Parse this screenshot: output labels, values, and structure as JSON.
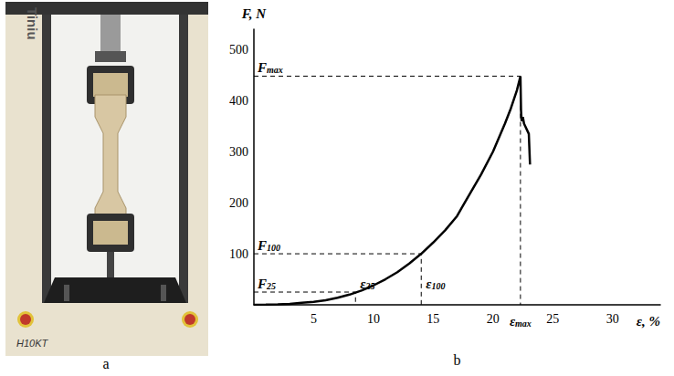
{
  "chart_data": {
    "type": "line",
    "caption": "b",
    "x_label": "ε, %",
    "y_label": "F, N",
    "x": [
      0,
      1,
      2,
      3,
      4,
      5,
      6,
      7,
      8,
      9,
      10,
      11,
      12,
      13,
      14,
      15,
      16,
      17,
      18,
      19,
      20,
      21,
      21.5,
      22,
      22.3,
      22.35,
      22.4,
      22.5,
      22.6,
      22.7,
      22.9,
      23.0,
      23.1
    ],
    "values": [
      0,
      0.3,
      1,
      2,
      4,
      6,
      9,
      14,
      20,
      28,
      38,
      50,
      64,
      81,
      100,
      122,
      146,
      174,
      215,
      255,
      300,
      355,
      385,
      420,
      448,
      380,
      360,
      368,
      355,
      350,
      340,
      335,
      275
    ],
    "color": "#000000",
    "xlim": [
      0,
      34
    ],
    "xticks": [
      5,
      10,
      15,
      20,
      25,
      30
    ],
    "ylim": [
      0,
      540
    ],
    "yticks": [
      100,
      200,
      300,
      400,
      500
    ],
    "grid": false,
    "annotations": [
      {
        "x": 22.3,
        "y": 448,
        "y_text": {
          "base": "F",
          "sub": "max"
        },
        "x_text": {
          "base": "ε",
          "sub": "max"
        }
      },
      {
        "x": 14,
        "y": 100,
        "y_text": {
          "base": "F",
          "sub": "100"
        },
        "x_text": {
          "base": "ε",
          "sub": "100"
        }
      },
      {
        "x": 8.5,
        "y": 25,
        "y_text": {
          "base": "F",
          "sub": "25"
        },
        "x_text": {
          "base": "ε",
          "sub": "25"
        }
      }
    ]
  },
  "photo": {
    "caption": "a",
    "brand": "Tiniu",
    "model": "H10KT"
  }
}
